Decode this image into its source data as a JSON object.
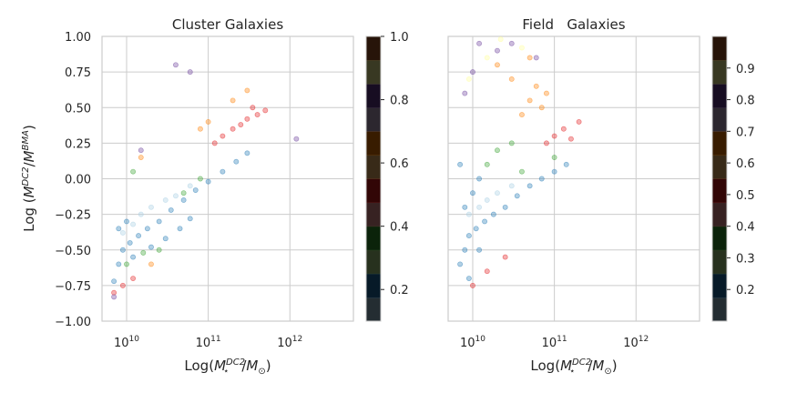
{
  "chart_data": [
    {
      "type": "scatter",
      "title": "Cluster Galaxies",
      "xlabel": "Log(M_⋆^{DC2}/M_⊙)",
      "ylabel": "Log (M_⋆^{DC2}/M_⋆^{BMA})",
      "x_scale": "log",
      "xlim": [
        5000000000.0,
        6000000000000.0
      ],
      "ylim": [
        -1.0,
        1.0
      ],
      "x_ticks": [
        "10^10",
        "10^11",
        "10^12"
      ],
      "y_ticks": [
        "1.00",
        "0.75",
        "0.50",
        "0.25",
        "0.00",
        "−0.25",
        "−0.50",
        "−0.75",
        "−1.00"
      ],
      "grid": true,
      "series": [
        {
          "color": "#1f78b4",
          "points": [
            [
              7000000000.0,
              -0.72
            ],
            [
              8000000000.0,
              -0.6
            ],
            [
              9000000000.0,
              -0.5
            ],
            [
              11000000000.0,
              -0.45
            ],
            [
              14000000000.0,
              -0.4
            ],
            [
              18000000000.0,
              -0.35
            ],
            [
              25000000000.0,
              -0.3
            ],
            [
              35000000000.0,
              -0.22
            ],
            [
              50000000000.0,
              -0.15
            ],
            [
              70000000000.0,
              -0.08
            ],
            [
              100000000000.0,
              -0.02
            ],
            [
              150000000000.0,
              0.05
            ],
            [
              220000000000.0,
              0.12
            ],
            [
              300000000000.0,
              0.18
            ],
            [
              12000000000.0,
              -0.55
            ],
            [
              20000000000.0,
              -0.48
            ],
            [
              30000000000.0,
              -0.42
            ],
            [
              45000000000.0,
              -0.35
            ],
            [
              60000000000.0,
              -0.28
            ],
            [
              8000000000.0,
              -0.35
            ],
            [
              10000000000.0,
              -0.3
            ]
          ]
        },
        {
          "color": "#a6cee3",
          "points": [
            [
              15000000000.0,
              -0.25
            ],
            [
              20000000000.0,
              -0.2
            ],
            [
              30000000000.0,
              -0.15
            ],
            [
              40000000000.0,
              -0.12
            ],
            [
              60000000000.0,
              -0.05
            ],
            [
              9000000000.0,
              -0.38
            ],
            [
              12000000000.0,
              -0.32
            ]
          ]
        },
        {
          "color": "#e31a1c",
          "points": [
            [
              150000000000.0,
              0.3
            ],
            [
              200000000000.0,
              0.35
            ],
            [
              250000000000.0,
              0.38
            ],
            [
              300000000000.0,
              0.42
            ],
            [
              400000000000.0,
              0.45
            ],
            [
              500000000000.0,
              0.48
            ],
            [
              120000000000.0,
              0.25
            ],
            [
              350000000000.0,
              0.5
            ],
            [
              7000000000.0,
              -0.8
            ],
            [
              9000000000.0,
              -0.75
            ],
            [
              12000000000.0,
              -0.7
            ]
          ]
        },
        {
          "color": "#ff7f00",
          "points": [
            [
              100000000000.0,
              0.4
            ],
            [
              80000000000.0,
              0.35
            ],
            [
              200000000000.0,
              0.55
            ],
            [
              300000000000.0,
              0.62
            ],
            [
              15000000000.0,
              0.15
            ],
            [
              20000000000.0,
              -0.6
            ]
          ]
        },
        {
          "color": "#33a02c",
          "points": [
            [
              10000000000.0,
              -0.6
            ],
            [
              16000000000.0,
              -0.52
            ],
            [
              25000000000.0,
              -0.5
            ],
            [
              50000000000.0,
              -0.1
            ],
            [
              80000000000.0,
              0.0
            ],
            [
              12000000000.0,
              0.05
            ]
          ]
        },
        {
          "color": "#6a3d9a",
          "points": [
            [
              7000000000.0,
              -0.83
            ],
            [
              40000000000.0,
              0.8
            ],
            [
              60000000000.0,
              0.75
            ],
            [
              15000000000.0,
              0.2
            ],
            [
              1200000000000.0,
              0.28
            ]
          ]
        }
      ],
      "colorbar": {
        "ticks": [
          "0.2",
          "0.4",
          "0.6",
          "0.8",
          "1.0"
        ],
        "range": [
          0.1,
          1.0
        ]
      }
    },
    {
      "type": "scatter",
      "title": "Field   Galaxies",
      "xlabel": "Log(M_⋆^{DC2}/M_⊙)",
      "x_scale": "log",
      "xlim": [
        5000000000.0,
        6000000000000.0
      ],
      "ylim": [
        -1.0,
        1.0
      ],
      "x_ticks": [
        "10^10",
        "10^11",
        "10^12"
      ],
      "grid": true,
      "series": [
        {
          "color": "#1f78b4",
          "points": [
            [
              7000000000.0,
              -0.6
            ],
            [
              8000000000.0,
              -0.5
            ],
            [
              9000000000.0,
              -0.4
            ],
            [
              11000000000.0,
              -0.35
            ],
            [
              14000000000.0,
              -0.3
            ],
            [
              18000000000.0,
              -0.25
            ],
            [
              25000000000.0,
              -0.2
            ],
            [
              35000000000.0,
              -0.12
            ],
            [
              50000000000.0,
              -0.05
            ],
            [
              70000000000.0,
              0.0
            ],
            [
              100000000000.0,
              0.05
            ],
            [
              140000000000.0,
              0.1
            ],
            [
              8000000000.0,
              -0.2
            ],
            [
              10000000000.0,
              -0.1
            ],
            [
              12000000000.0,
              0.0
            ],
            [
              7000000000.0,
              0.1
            ],
            [
              9000000000.0,
              -0.7
            ],
            [
              12000000000.0,
              -0.5
            ]
          ]
        },
        {
          "color": "#a6cee3",
          "points": [
            [
              15000000000.0,
              -0.15
            ],
            [
              20000000000.0,
              -0.1
            ],
            [
              30000000000.0,
              -0.05
            ],
            [
              9000000000.0,
              -0.25
            ],
            [
              12000000000.0,
              -0.2
            ]
          ]
        },
        {
          "color": "#e31a1c",
          "points": [
            [
              100000000000.0,
              0.3
            ],
            [
              130000000000.0,
              0.35
            ],
            [
              160000000000.0,
              0.28
            ],
            [
              80000000000.0,
              0.25
            ],
            [
              200000000000.0,
              0.4
            ],
            [
              10000000000.0,
              -0.75
            ],
            [
              15000000000.0,
              -0.65
            ],
            [
              25000000000.0,
              -0.55
            ]
          ]
        },
        {
          "color": "#ff7f00",
          "points": [
            [
              40000000000.0,
              0.45
            ],
            [
              50000000000.0,
              0.55
            ],
            [
              60000000000.0,
              0.65
            ],
            [
              30000000000.0,
              0.7
            ],
            [
              70000000000.0,
              0.5
            ],
            [
              20000000000.0,
              0.8
            ],
            [
              50000000000.0,
              0.85
            ],
            [
              80000000000.0,
              0.6
            ]
          ]
        },
        {
          "color": "#33a02c",
          "points": [
            [
              20000000000.0,
              0.2
            ],
            [
              30000000000.0,
              0.25
            ],
            [
              15000000000.0,
              0.1
            ],
            [
              40000000000.0,
              0.05
            ],
            [
              100000000000.0,
              0.15
            ]
          ]
        },
        {
          "color": "#6a3d9a",
          "points": [
            [
              10000000000.0,
              0.75
            ],
            [
              20000000000.0,
              0.9
            ],
            [
              30000000000.0,
              0.95
            ],
            [
              60000000000.0,
              0.85
            ],
            [
              8000000000.0,
              0.6
            ],
            [
              12000000000.0,
              0.95
            ]
          ]
        },
        {
          "color": "#ffff99",
          "points": [
            [
              9000000000.0,
              0.7
            ],
            [
              15000000000.0,
              0.85
            ],
            [
              22000000000.0,
              0.98
            ],
            [
              40000000000.0,
              0.92
            ]
          ]
        }
      ],
      "colorbar": {
        "ticks": [
          "0.2",
          "0.3",
          "0.4",
          "0.5",
          "0.6",
          "0.7",
          "0.8",
          "0.9"
        ],
        "range": [
          0.1,
          1.0
        ]
      }
    }
  ]
}
